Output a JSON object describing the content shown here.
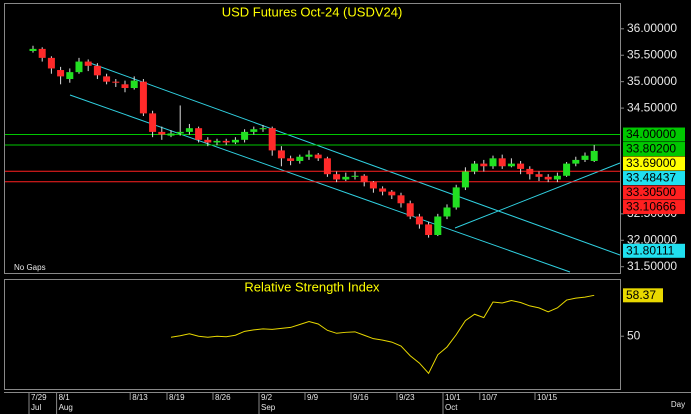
{
  "chart_data": [
    {
      "type": "candlestick",
      "title": "USD Futures Oct-24 (USDV24)",
      "note": "No Gaps",
      "x_axis_label": "Day",
      "up_color": "#22e022",
      "down_color": "#ff2a2a",
      "candles": {
        "open": [
          35.58,
          35.62,
          35.45,
          35.22,
          35.05,
          35.18,
          35.38,
          35.3,
          35.1,
          35.0,
          34.95,
          34.88,
          35.0,
          34.4,
          34.05,
          33.98,
          34.02,
          34.05,
          34.12,
          33.9,
          33.85,
          33.88,
          33.85,
          33.9,
          34.05,
          34.1,
          34.12,
          33.7,
          33.55,
          33.5,
          33.58,
          33.62,
          33.55,
          33.25,
          33.15,
          33.2,
          33.22,
          33.1,
          32.98,
          32.92,
          32.85,
          32.7,
          32.45,
          32.3,
          32.1,
          32.45,
          32.62,
          33.0,
          33.3,
          33.45,
          33.4,
          33.55,
          33.4,
          33.45,
          33.35,
          33.25,
          33.2,
          33.15,
          33.22,
          33.45,
          33.52,
          33.5
        ],
        "high": [
          35.68,
          35.65,
          35.48,
          35.28,
          35.25,
          35.45,
          35.42,
          35.35,
          35.15,
          35.05,
          35.02,
          35.1,
          35.05,
          34.45,
          34.15,
          34.08,
          34.55,
          34.2,
          34.15,
          33.95,
          33.92,
          33.92,
          33.95,
          34.1,
          34.15,
          34.18,
          34.15,
          33.78,
          33.6,
          33.62,
          33.7,
          33.65,
          33.58,
          33.3,
          33.28,
          33.3,
          33.25,
          33.12,
          33.02,
          32.95,
          32.9,
          32.75,
          32.5,
          32.35,
          32.5,
          32.68,
          33.05,
          33.38,
          33.5,
          33.52,
          33.6,
          33.62,
          33.55,
          33.5,
          33.4,
          33.3,
          33.25,
          33.28,
          33.48,
          33.58,
          33.66,
          33.8
        ],
        "low": [
          35.55,
          35.38,
          35.15,
          34.95,
          34.98,
          35.15,
          35.2,
          35.05,
          34.95,
          34.9,
          34.8,
          34.85,
          34.35,
          33.95,
          33.9,
          33.95,
          33.98,
          34.0,
          33.85,
          33.78,
          33.8,
          33.8,
          33.82,
          33.85,
          34.0,
          34.05,
          33.6,
          33.4,
          33.42,
          33.45,
          33.52,
          33.5,
          33.2,
          33.1,
          33.12,
          33.15,
          33.02,
          32.9,
          32.85,
          32.78,
          32.62,
          32.4,
          32.22,
          32.05,
          32.08,
          32.4,
          32.58,
          32.95,
          33.25,
          33.3,
          33.35,
          33.35,
          33.38,
          33.25,
          33.15,
          33.12,
          33.1,
          33.1,
          33.2,
          33.4,
          33.48,
          33.48
        ],
        "close": [
          35.62,
          35.45,
          35.25,
          35.1,
          35.18,
          35.38,
          35.3,
          35.12,
          35.0,
          34.98,
          34.88,
          35.02,
          34.4,
          34.05,
          34.0,
          34.02,
          34.05,
          34.12,
          33.9,
          33.85,
          33.88,
          33.85,
          33.9,
          34.05,
          34.1,
          34.12,
          33.7,
          33.55,
          33.5,
          33.58,
          33.62,
          33.55,
          33.25,
          33.15,
          33.2,
          33.22,
          33.1,
          32.98,
          32.92,
          32.85,
          32.7,
          32.45,
          32.3,
          32.1,
          32.45,
          32.62,
          33.0,
          33.3,
          33.45,
          33.4,
          33.55,
          33.4,
          33.45,
          33.35,
          33.25,
          33.2,
          33.15,
          33.22,
          33.45,
          33.52,
          33.6,
          33.69
        ]
      },
      "ylim": [
        31.4,
        36.45
      ],
      "yticks": [
        {
          "value": 36,
          "label": "36.00000"
        },
        {
          "value": 35.5,
          "label": "35.50000"
        },
        {
          "value": 35,
          "label": "35.00000"
        },
        {
          "value": 34.5,
          "label": "34.50000"
        },
        {
          "value": 32.5,
          "label": "32.50000"
        },
        {
          "value": 32,
          "label": "32.00000"
        },
        {
          "value": 31.5,
          "label": "31.50000"
        }
      ],
      "levels": [
        {
          "value": 34,
          "label": "34.00000",
          "color": "#00c800",
          "line": true
        },
        {
          "value": 33.802,
          "label": "33.80200",
          "color": "#00c800",
          "line": true
        },
        {
          "value": 33.69,
          "label": "33.69000",
          "color": "#ffff00",
          "line": false
        },
        {
          "value": 33.48437,
          "label": "33.48437",
          "color": "#20e0f0",
          "line": false
        },
        {
          "value": 33.305,
          "label": "33.30500",
          "color": "#ff2020",
          "line": true
        },
        {
          "value": 33.10666,
          "label": "33.10666",
          "color": "#ff2020",
          "line": true
        },
        {
          "value": 31.80111,
          "label": "31.80111",
          "color": "#20e0f0",
          "line": false
        }
      ],
      "xticks": [
        {
          "value": 0,
          "label": "7/29"
        },
        {
          "value": 3,
          "label": "8/1"
        },
        {
          "value": 11,
          "label": "8/13"
        },
        {
          "value": 15,
          "label": "8/19"
        },
        {
          "value": 20,
          "label": "8/26"
        },
        {
          "value": 25,
          "label": "9/2"
        },
        {
          "value": 30,
          "label": "9/9"
        },
        {
          "value": 35,
          "label": "9/16"
        },
        {
          "value": 40,
          "label": "9/23"
        },
        {
          "value": 45,
          "label": "10/1"
        },
        {
          "value": 49,
          "label": "10/7"
        },
        {
          "value": 55,
          "label": "10/15"
        }
      ],
      "month_ticks": [
        {
          "value": 0,
          "label": "Jul"
        },
        {
          "value": 3,
          "label": "Aug"
        },
        {
          "value": 25,
          "label": "Sep"
        },
        {
          "value": 45,
          "label": "Oct"
        }
      ]
    },
    {
      "type": "line",
      "title": "Relative Strength Index",
      "color": "#e8d800",
      "values": [
        null,
        null,
        null,
        null,
        null,
        null,
        null,
        null,
        null,
        null,
        null,
        null,
        null,
        null,
        null,
        49.8,
        50.1,
        50.5,
        50.0,
        49.8,
        50.0,
        49.9,
        50.2,
        51.0,
        51.3,
        51.5,
        51.4,
        51.6,
        51.8,
        52.4,
        53.0,
        52.5,
        51.2,
        50.6,
        50.8,
        50.9,
        50.2,
        49.5,
        49.2,
        48.8,
        48.0,
        46.0,
        44.5,
        42.4,
        46.2,
        47.8,
        50.3,
        53.2,
        54.5,
        53.8,
        57.0,
        56.8,
        57.3,
        56.9,
        56.2,
        55.8,
        55.0,
        55.8,
        57.4,
        57.8,
        58.0,
        58.37
      ],
      "last_value": 58.37,
      "ylim": [
        39.2,
        61.3
      ],
      "yticks": [
        50
      ]
    }
  ]
}
